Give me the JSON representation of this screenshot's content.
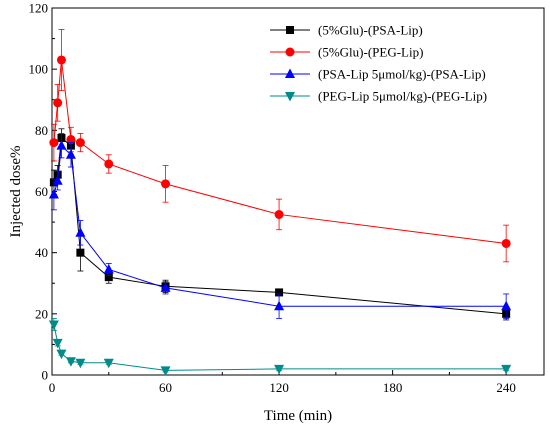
{
  "chart_data": {
    "type": "line",
    "title": "",
    "xlabel": "Time (min)",
    "ylabel": "Injected dose%",
    "xlim": [
      0,
      260
    ],
    "ylim": [
      0,
      120
    ],
    "xticks": [
      0,
      60,
      120,
      180,
      240
    ],
    "yticks": [
      0,
      20,
      40,
      60,
      80,
      100,
      120
    ],
    "grid": false,
    "legend_position": "top-right",
    "series": [
      {
        "name": "(5%Glu)-(PSA-Lip)",
        "color": "#000000",
        "marker": "square",
        "x": [
          1,
          3,
          5,
          10,
          15,
          30,
          60,
          120,
          240
        ],
        "y": [
          63,
          65.5,
          77.5,
          75,
          40,
          32,
          29,
          27,
          20
        ],
        "err": [
          4,
          3,
          3,
          3,
          6,
          2,
          2,
          1,
          2
        ]
      },
      {
        "name": "(5%Glu)-(PEG-Lip)",
        "color": "#ff0000",
        "marker": "circle",
        "x": [
          1,
          3,
          5,
          10,
          15,
          30,
          60,
          120,
          240
        ],
        "y": [
          76,
          89,
          103,
          77,
          76,
          69,
          62.5,
          52.5,
          43
        ],
        "err": [
          6,
          6,
          10,
          4,
          3,
          3,
          6,
          5,
          6
        ]
      },
      {
        "name": "(PSA-Lip 5μmol/kg)-(PSA-Lip)",
        "color": "#0000ff",
        "marker": "triangle-up",
        "x": [
          1,
          3,
          5,
          10,
          15,
          30,
          60,
          120,
          240
        ],
        "y": [
          59,
          63.5,
          75,
          72,
          46.5,
          34.5,
          28.5,
          22.5,
          22.5
        ],
        "err": [
          5,
          3,
          4,
          4,
          4,
          2,
          2,
          4,
          4
        ]
      },
      {
        "name": "(PEG-Lip 5μmol/kg)-(PEG-Lip)",
        "color": "#008b8b",
        "marker": "triangle-down",
        "x": [
          1,
          3,
          5,
          10,
          15,
          30,
          60,
          120,
          240
        ],
        "y": [
          16.5,
          10.5,
          7,
          4.5,
          4,
          4,
          1.5,
          2,
          2
        ],
        "err": [
          2,
          1,
          0.5,
          0.5,
          0.5,
          0.5,
          0.5,
          0.5,
          0.5
        ]
      }
    ]
  }
}
